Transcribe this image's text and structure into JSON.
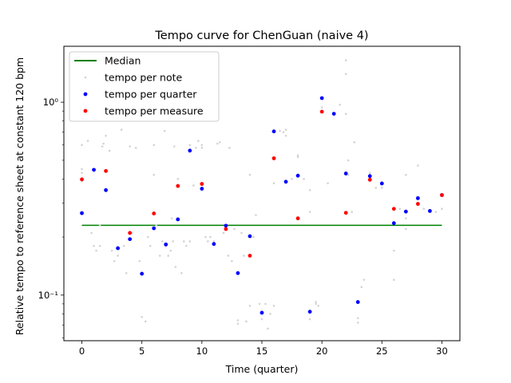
{
  "chart_data": {
    "type": "scatter",
    "title": "Tempo curve for ChenGuan (naive 4)",
    "xlabel": "Time (quarter)",
    "ylabel": "Relative tempo to reference sheet at constant 120 bpm",
    "xlim": [
      -1.5,
      31.5
    ],
    "ylim": [
      0.058,
      1.95
    ],
    "yscale": "log",
    "grid": false,
    "legend_position": "top-left",
    "x_ticks": [
      0,
      5,
      10,
      15,
      20,
      25,
      30
    ],
    "x_tick_labels": [
      "0",
      "5",
      "10",
      "15",
      "20",
      "25",
      "30"
    ],
    "y_ticks": [
      0.1,
      1.0
    ],
    "y_tick_labels": [
      "10⁻¹",
      "10⁰"
    ],
    "median": {
      "name": "Median",
      "value": 0.23,
      "x_range": [
        0,
        30
      ],
      "color": "#008000"
    },
    "series": [
      {
        "name": "tempo per note",
        "color": "#d3d3d3",
        "marker_size": "small",
        "points": [
          [
            0,
            0.6
          ],
          [
            0,
            0.45
          ],
          [
            0,
            0.43
          ],
          [
            0,
            0.39
          ],
          [
            0,
            0.27
          ],
          [
            0.5,
            0.63
          ],
          [
            0.8,
            0.21
          ],
          [
            1,
            0.18
          ],
          [
            1.2,
            0.17
          ],
          [
            1.5,
            0.18
          ],
          [
            1.5,
            0.23
          ],
          [
            1.7,
            0.59
          ],
          [
            1.8,
            0.61
          ],
          [
            2,
            0.67
          ],
          [
            2.3,
            0.56
          ],
          [
            2.5,
            0.17
          ],
          [
            2.7,
            0.15
          ],
          [
            3,
            0.16
          ],
          [
            3.3,
            0.72
          ],
          [
            3.5,
            0.18
          ],
          [
            3.7,
            0.13
          ],
          [
            4,
            0.59
          ],
          [
            4.2,
            0.21
          ],
          [
            4.5,
            0.58
          ],
          [
            4.8,
            0.15
          ],
          [
            5,
            0.13
          ],
          [
            5,
            0.077
          ],
          [
            5.3,
            0.073
          ],
          [
            5.5,
            0.2
          ],
          [
            5.7,
            0.18
          ],
          [
            6,
            0.42
          ],
          [
            6,
            0.6
          ],
          [
            6.2,
            0.23
          ],
          [
            6.5,
            0.16
          ],
          [
            6.7,
            0.19
          ],
          [
            6.9,
            0.71
          ],
          [
            7,
            0.18
          ],
          [
            7.2,
            0.16
          ],
          [
            7.4,
            0.17
          ],
          [
            7.5,
            0.25
          ],
          [
            7.6,
            0.19
          ],
          [
            7.7,
            0.59
          ],
          [
            7.8,
            0.14
          ],
          [
            8,
            0.4
          ],
          [
            8,
            0.25
          ],
          [
            8.3,
            0.13
          ],
          [
            8.5,
            0.19
          ],
          [
            8.7,
            0.18
          ],
          [
            9,
            0.19
          ],
          [
            9,
            0.6
          ],
          [
            9.3,
            0.37
          ],
          [
            9.5,
            0.58
          ],
          [
            9.7,
            0.63
          ],
          [
            10,
            0.58
          ],
          [
            10,
            0.6
          ],
          [
            10.3,
            0.2
          ],
          [
            10.5,
            0.19
          ],
          [
            10.7,
            0.2
          ],
          [
            11,
            0.19
          ],
          [
            11.3,
            0.61
          ],
          [
            11.5,
            0.62
          ],
          [
            11.8,
            0.21
          ],
          [
            12,
            0.23
          ],
          [
            12,
            0.22
          ],
          [
            12.2,
            0.16
          ],
          [
            12.3,
            0.58
          ],
          [
            12.5,
            0.15
          ],
          [
            12.7,
            0.22
          ],
          [
            13,
            0.071
          ],
          [
            13,
            0.074
          ],
          [
            13.3,
            0.21
          ],
          [
            13.5,
            0.16
          ],
          [
            13.7,
            0.073
          ],
          [
            14,
            0.42
          ],
          [
            14,
            0.088
          ],
          [
            14.3,
            0.2
          ],
          [
            14.5,
            0.26
          ],
          [
            14.8,
            0.09
          ],
          [
            15,
            0.075
          ],
          [
            15.3,
            0.09
          ],
          [
            15.5,
            0.067
          ],
          [
            15.7,
            0.08
          ],
          [
            16,
            0.38
          ],
          [
            16,
            0.088
          ],
          [
            16.5,
            0.71
          ],
          [
            16.8,
            0.7
          ],
          [
            17,
            0.67
          ],
          [
            17,
            0.72
          ],
          [
            17.5,
            0.4
          ],
          [
            18,
            0.52
          ],
          [
            18,
            0.53
          ],
          [
            18.5,
            0.4
          ],
          [
            19,
            0.35
          ],
          [
            19,
            0.27
          ],
          [
            19,
            0.075
          ],
          [
            19.5,
            0.09
          ],
          [
            19.5,
            0.092
          ],
          [
            19.7,
            0.088
          ],
          [
            20,
            0.94
          ],
          [
            20.5,
            0.38
          ],
          [
            21,
            0.87
          ],
          [
            21.5,
            0.97
          ],
          [
            22,
            1.65
          ],
          [
            22,
            1.4
          ],
          [
            22,
            0.87
          ],
          [
            22.2,
            0.5
          ],
          [
            22.2,
            0.42
          ],
          [
            22.5,
            0.27
          ],
          [
            22.7,
            0.62
          ],
          [
            23,
            0.072
          ],
          [
            23,
            0.076
          ],
          [
            23.3,
            0.11
          ],
          [
            23.5,
            0.12
          ],
          [
            24,
            0.43
          ],
          [
            24.5,
            0.36
          ],
          [
            25,
            0.36
          ],
          [
            26,
            0.17
          ],
          [
            26,
            0.12
          ],
          [
            26.5,
            0.28
          ],
          [
            27,
            0.25
          ],
          [
            27,
            0.22
          ],
          [
            27,
            0.42
          ],
          [
            28,
            0.47
          ],
          [
            28,
            0.3
          ],
          [
            28.5,
            0.28
          ],
          [
            29,
            0.27
          ],
          [
            29.5,
            0.27
          ],
          [
            30,
            0.28
          ],
          [
            30,
            0.33
          ]
        ]
      },
      {
        "name": "tempo per quarter",
        "color": "#0000ff",
        "marker_size": "medium",
        "points": [
          [
            0,
            0.266
          ],
          [
            1,
            0.446
          ],
          [
            2,
            0.35
          ],
          [
            3,
            0.175
          ],
          [
            4,
            0.195
          ],
          [
            5,
            0.129
          ],
          [
            6,
            0.222
          ],
          [
            7,
            0.183
          ],
          [
            8,
            0.247
          ],
          [
            9,
            0.561
          ],
          [
            10,
            0.356
          ],
          [
            11,
            0.184
          ],
          [
            12,
            0.229
          ],
          [
            13,
            0.13
          ],
          [
            14,
            0.202
          ],
          [
            15,
            0.081
          ],
          [
            16,
            0.706
          ],
          [
            17,
            0.387
          ],
          [
            18,
            0.416
          ],
          [
            19,
            0.082
          ],
          [
            20,
            1.05
          ],
          [
            21,
            0.871
          ],
          [
            22,
            0.427
          ],
          [
            23,
            0.092
          ],
          [
            24,
            0.414
          ],
          [
            25,
            0.379
          ],
          [
            26,
            0.236
          ],
          [
            27,
            0.271
          ],
          [
            28,
            0.318
          ],
          [
            29,
            0.273
          ],
          [
            30,
            0.33
          ]
        ]
      },
      {
        "name": "tempo per measure",
        "color": "#ff0000",
        "marker_size": "medium",
        "points": [
          [
            0,
            0.398
          ],
          [
            2,
            0.44
          ],
          [
            4,
            0.21
          ],
          [
            6,
            0.265
          ],
          [
            8,
            0.368
          ],
          [
            10,
            0.377
          ],
          [
            12,
            0.22
          ],
          [
            14,
            0.16
          ],
          [
            16,
            0.512
          ],
          [
            18,
            0.25
          ],
          [
            20,
            0.893
          ],
          [
            22,
            0.267
          ],
          [
            24,
            0.396
          ],
          [
            26,
            0.28
          ],
          [
            28,
            0.297
          ],
          [
            30,
            0.33
          ]
        ]
      }
    ]
  }
}
